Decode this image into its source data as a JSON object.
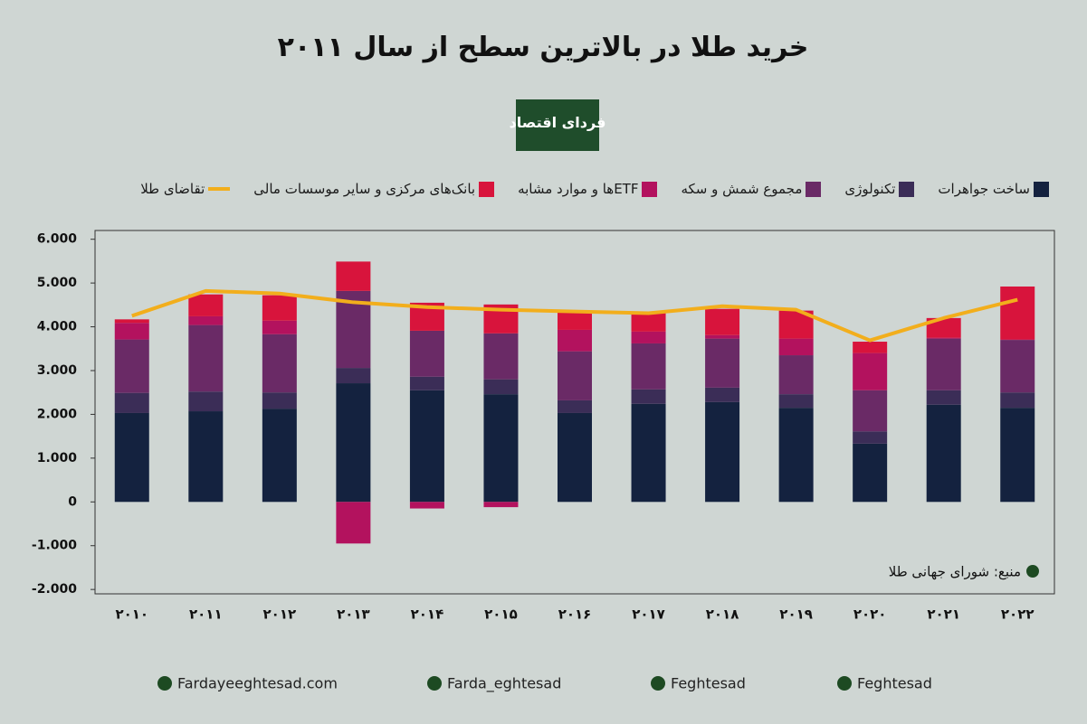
{
  "chart_data": {
    "type": "bar",
    "stacked": true,
    "title": "خرید طلا در بالاترین سطح از سال ۲۰۱۱",
    "categories": [
      "۲۰۱۰",
      "۲۰۱۱",
      "۲۰۱۲",
      "۲۰۱۳",
      "۲۰۱۴",
      "۲۰۱۵",
      "۲۰۱۶",
      "۲۰۱۷",
      "۲۰۱۸",
      "۲۰۱۹",
      "۲۰۲۰",
      "۲۰۲۱",
      "۲۰۲۲"
    ],
    "series": [
      {
        "name": "ساخت جواهرات",
        "color": "#14223f",
        "values": [
          2030,
          2070,
          2130,
          2710,
          2550,
          2460,
          2030,
          2240,
          2280,
          2150,
          1330,
          2220,
          2150
        ]
      },
      {
        "name": "تکنولوژی",
        "color": "#3b2d57",
        "values": [
          460,
          450,
          370,
          350,
          310,
          340,
          290,
          330,
          330,
          310,
          280,
          330,
          350
        ]
      },
      {
        "name": "مجموع شمش و سکه",
        "color": "#6a2a66",
        "values": [
          1220,
          1520,
          1330,
          1760,
          1050,
          1050,
          1120,
          1050,
          1120,
          890,
          940,
          1180,
          1200
        ]
      },
      {
        "name": "ETFها و موارد مشابه",
        "color": "#b3125e",
        "values": [
          380,
          200,
          310,
          -950,
          -150,
          -120,
          490,
          270,
          80,
          380,
          850,
          20,
          10
        ]
      },
      {
        "name": "بانک‌های مرکزی و سایر موسسات مالی",
        "color": "#d8143c",
        "values": [
          80,
          500,
          580,
          670,
          640,
          660,
          420,
          420,
          600,
          640,
          260,
          450,
          1210
        ]
      },
      {
        "name": "تقاضای طلا",
        "color": "#f2ae1c",
        "type": "line",
        "values": [
          4250,
          4820,
          4760,
          4560,
          4450,
          4390,
          4350,
          4310,
          4470,
          4390,
          3690,
          4200,
          4620
        ]
      }
    ],
    "ylim": [
      -2100,
      6200
    ],
    "yticks": [
      {
        "value": -2000,
        "label": "-2.000"
      },
      {
        "value": -1000,
        "label": "-1.000"
      },
      0,
      {
        "value": 1000,
        "label": "1.000"
      },
      {
        "value": 2000,
        "label": "2.000"
      },
      {
        "value": 3000,
        "label": "3.000"
      },
      {
        "value": 4000,
        "label": "4.000"
      },
      {
        "value": 5000,
        "label": "5.000"
      },
      {
        "value": 6000,
        "label": "6.000"
      }
    ],
    "source": "منبع: شورای جهانی طلا"
  },
  "logo": "فردای اقتصاد",
  "footer": [
    "Fardayeeghtesad.com",
    "Farda_eghtesad",
    "Feghtesad",
    "Feghtesad"
  ]
}
